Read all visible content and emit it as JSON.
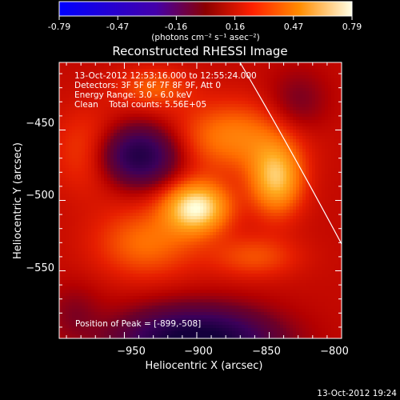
{
  "colorbar": {
    "ticks": [
      "-0.79",
      "-0.47",
      "-0.16",
      "0.16",
      "0.47",
      "0.79"
    ],
    "units": "(photons cm⁻² s⁻¹ asec⁻²)",
    "range": [
      -0.79,
      0.79
    ]
  },
  "chart_data": {
    "type": "heatmap",
    "title": "Reconstructed RHESSI Image",
    "xlabel": "Heliocentric X (arcsec)",
    "ylabel": "Heliocentric Y (arcsec)",
    "xlim": [
      -995,
      -800
    ],
    "ylim": [
      -598,
      -402
    ],
    "x_ticks": [
      -950,
      -900,
      -850,
      -800
    ],
    "y_ticks": [
      -450,
      -500,
      -550
    ],
    "x_tick_labels": [
      "−950",
      "−900",
      "−850",
      "−800"
    ],
    "y_tick_labels": [
      "−450",
      "−500",
      "−550"
    ],
    "peak": [
      -899,
      -508
    ],
    "annotations": [
      "13-Oct-2012 12:53:16.000 to 12:55:24.000",
      "Detectors: 3F 5F 6F 7F 8F 9F, Att 0",
      "Energy Range: 3.0 - 6.0 keV",
      "Clean    Total counts: 5.56E+05"
    ],
    "peak_label": "Position of Peak = [-899,-508]"
  },
  "timestamp": "13-Oct-2012 19:24"
}
